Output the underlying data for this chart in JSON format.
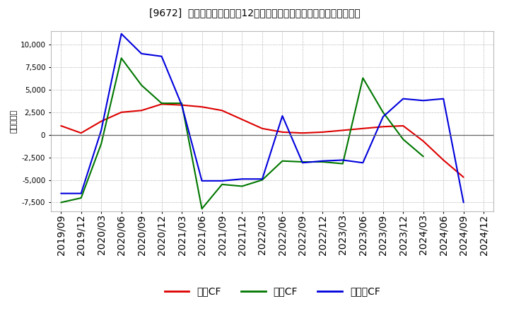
{
  "title": "[9672]  キャッシュフローの12か月移動合計の対前年同期増減額の推移",
  "ylabel": "（百万円）",
  "background_color": "#ffffff",
  "plot_bg_color": "#ffffff",
  "grid_color": "#999999",
  "ylim": [
    -8500,
    11500
  ],
  "yticks": [
    -7500,
    -5000,
    -2500,
    0,
    2500,
    5000,
    7500,
    10000
  ],
  "x_labels": [
    "2019/09",
    "2019/12",
    "2020/03",
    "2020/06",
    "2020/09",
    "2020/12",
    "2021/03",
    "2021/06",
    "2021/09",
    "2021/12",
    "2022/03",
    "2022/06",
    "2022/09",
    "2022/12",
    "2023/03",
    "2023/06",
    "2023/09",
    "2023/12",
    "2024/03",
    "2024/06",
    "2024/09",
    "2024/12"
  ],
  "series": {
    "営業CF": {
      "color": "#dd0000",
      "values": [
        1000,
        200,
        1500,
        2500,
        2700,
        3400,
        3300,
        3100,
        2700,
        1700,
        700,
        300,
        200,
        300,
        500,
        700,
        900,
        1000,
        -700,
        -2800,
        -4700,
        null
      ]
    },
    "投資CF": {
      "color": "#007700",
      "values": [
        -7500,
        -7000,
        -1000,
        8500,
        5500,
        3500,
        3500,
        -8200,
        -5500,
        -5700,
        -5000,
        -2900,
        -3000,
        -3000,
        -3200,
        6300,
        2500,
        -500,
        -2400,
        null,
        null,
        null
      ]
    },
    "フリーCF": {
      "color": "#0000dd",
      "values": [
        -6500,
        -6500,
        500,
        11200,
        9000,
        8700,
        3300,
        -5100,
        -5100,
        -4900,
        -4900,
        2100,
        -3100,
        -2900,
        -2800,
        -3100,
        2000,
        4000,
        3800,
        4000,
        -7500,
        null
      ]
    }
  },
  "legend_labels": [
    "営業CF",
    "投資CF",
    "フリーCF"
  ],
  "legend_colors": [
    "#dd0000",
    "#007700",
    "#0000dd"
  ]
}
